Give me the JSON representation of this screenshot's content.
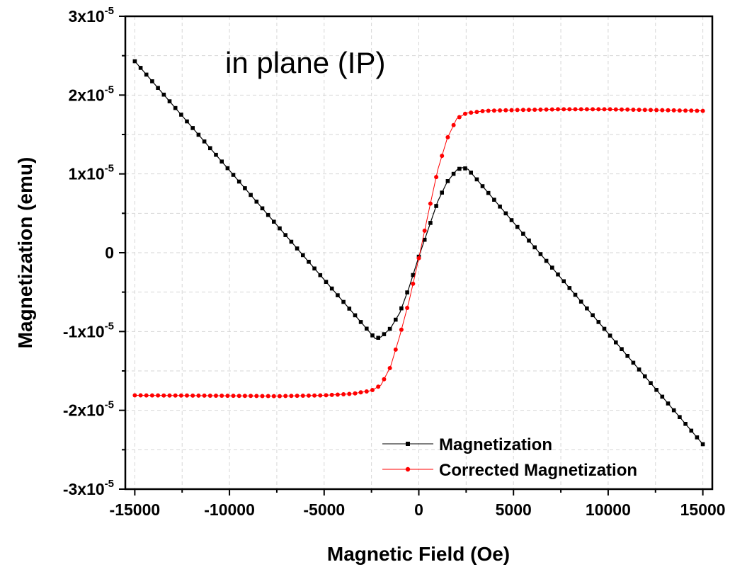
{
  "chart_data": {
    "type": "line",
    "title": "",
    "annotation": "in plane (IP)",
    "xlabel": "Magnetic Field (Oe)",
    "ylabel": "Magnetization (emu)",
    "xlim": [
      -15500,
      15500
    ],
    "ylim": [
      -3e-05,
      3e-05
    ],
    "grid": true,
    "legend_position": "bottom-right",
    "x_ticks": [
      {
        "value": -15000,
        "label": "-15000"
      },
      {
        "value": -10000,
        "label": "-10000"
      },
      {
        "value": -5000,
        "label": "-5000"
      },
      {
        "value": 0,
        "label": "0"
      },
      {
        "value": 5000,
        "label": "5000"
      },
      {
        "value": 10000,
        "label": "10000"
      },
      {
        "value": 15000,
        "label": "15000"
      }
    ],
    "y_ticks": [
      {
        "value": 3e-05,
        "mant": "3x10",
        "exp": "-5"
      },
      {
        "value": 2e-05,
        "mant": "2x10",
        "exp": "-5"
      },
      {
        "value": 1e-05,
        "mant": "1x10",
        "exp": "-5"
      },
      {
        "value": 0,
        "mant": "0",
        "exp": ""
      },
      {
        "value": -1e-05,
        "mant": "-1x10",
        "exp": "-5"
      },
      {
        "value": -2e-05,
        "mant": "-2x10",
        "exp": "-5"
      },
      {
        "value": -3e-05,
        "mant": "-3x10",
        "exp": "-5"
      }
    ],
    "series": [
      {
        "name": "Magnetization",
        "color": "#000000",
        "marker": "square",
        "points": [
          [
            -15000,
            2.43e-05
          ],
          [
            -2300,
            -1.09e-05
          ],
          [
            -2000,
            -1.07e-05
          ],
          [
            -1500,
            -9.6e-06
          ],
          [
            -1000,
            -7.6e-06
          ],
          [
            -500,
            -4.3e-06
          ],
          [
            0,
            -5e-07
          ],
          [
            500,
            3e-06
          ],
          [
            1000,
            6.5e-06
          ],
          [
            1500,
            9e-06
          ],
          [
            2000,
            1.05e-05
          ],
          [
            2300,
            1.08e-05
          ],
          [
            2600,
            1.06e-05
          ],
          [
            15000,
            -2.43e-05
          ]
        ]
      },
      {
        "name": "Corrected Magnetization",
        "color": "#ff0000",
        "marker": "circle",
        "points": [
          [
            -15000,
            -1.81e-05
          ],
          [
            -10000,
            -1.815e-05
          ],
          [
            -7500,
            -1.82e-05
          ],
          [
            -5000,
            -1.81e-05
          ],
          [
            -3500,
            -1.79e-05
          ],
          [
            -2500,
            -1.75e-05
          ],
          [
            -2000,
            -1.68e-05
          ],
          [
            -1500,
            -1.45e-05
          ],
          [
            -1000,
            -1.05e-05
          ],
          [
            -500,
            -6e-06
          ],
          [
            0,
            -7e-07
          ],
          [
            500,
            5e-06
          ],
          [
            1000,
            1.05e-05
          ],
          [
            1500,
            1.45e-05
          ],
          [
            2000,
            1.7e-05
          ],
          [
            2500,
            1.77e-05
          ],
          [
            3500,
            1.8e-05
          ],
          [
            5000,
            1.81e-05
          ],
          [
            7500,
            1.82e-05
          ],
          [
            10000,
            1.82e-05
          ],
          [
            12500,
            1.81e-05
          ],
          [
            15000,
            1.8e-05
          ]
        ]
      }
    ]
  }
}
